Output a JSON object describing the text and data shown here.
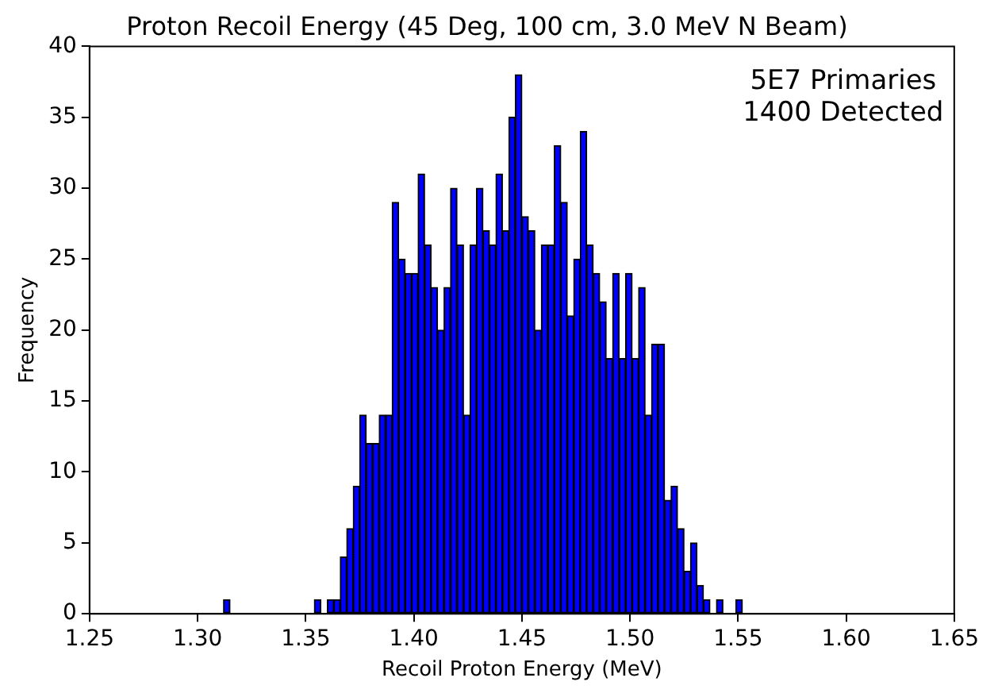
{
  "chart_data": {
    "type": "histogram",
    "title": "Proton Recoil Energy (45 Deg, 100 cm, 3.0 MeV N Beam)",
    "xlabel": "Recoil Proton Energy (MeV)",
    "ylabel": "Frequency",
    "annotations": [
      "5E7 Primaries",
      "1400 Detected"
    ],
    "bins": [
      1.312,
      1.315,
      1.318,
      1.321,
      1.324,
      1.327,
      1.33,
      1.333,
      1.336,
      1.339,
      1.342,
      1.345,
      1.348,
      1.351,
      1.354,
      1.357,
      1.36,
      1.363,
      1.366,
      1.369,
      1.372,
      1.375,
      1.378,
      1.381,
      1.384,
      1.387,
      1.39,
      1.393,
      1.396,
      1.399,
      1.402,
      1.405,
      1.408,
      1.411,
      1.414,
      1.417,
      1.42,
      1.423,
      1.426,
      1.429,
      1.432,
      1.435,
      1.438,
      1.441,
      1.444,
      1.447,
      1.45,
      1.453,
      1.456,
      1.459,
      1.462,
      1.465,
      1.468,
      1.471,
      1.474,
      1.477,
      1.48,
      1.483,
      1.486,
      1.489,
      1.492,
      1.495,
      1.498,
      1.501,
      1.504,
      1.507,
      1.51,
      1.513,
      1.516,
      1.519,
      1.522,
      1.525,
      1.528,
      1.531,
      1.534,
      1.537,
      1.54,
      1.543,
      1.546,
      1.549,
      1.552
    ],
    "values": [
      1,
      0,
      0,
      0,
      0,
      0,
      0,
      0,
      0,
      0,
      0,
      0,
      0,
      0,
      1,
      0,
      1,
      1,
      4,
      6,
      9,
      14,
      12,
      12,
      14,
      14,
      29,
      25,
      24,
      24,
      31,
      26,
      23,
      20,
      23,
      30,
      26,
      14,
      26,
      30,
      27,
      26,
      31,
      27,
      35,
      38,
      28,
      27,
      20,
      26,
      26,
      33,
      29,
      21,
      25,
      34,
      26,
      24,
      22,
      18,
      24,
      18,
      24,
      18,
      23,
      14,
      19,
      19,
      8,
      9,
      6,
      3,
      5,
      2,
      1,
      0,
      1,
      0,
      0,
      1
    ],
    "color": "#0000ff",
    "xlim": [
      1.25,
      1.65
    ],
    "xticks": [
      1.25,
      {
        "value": 1.3,
        "label": "1.30"
      },
      1.35,
      {
        "value": 1.4,
        "label": "1.40"
      },
      1.45,
      {
        "value": 1.5,
        "label": "1.50"
      },
      1.55,
      {
        "value": 1.6,
        "label": "1.60"
      },
      1.65
    ],
    "ylim": [
      0,
      40
    ],
    "yticks": [
      0,
      5,
      10,
      15,
      20,
      25,
      30,
      35,
      40
    ],
    "grid": false
  }
}
